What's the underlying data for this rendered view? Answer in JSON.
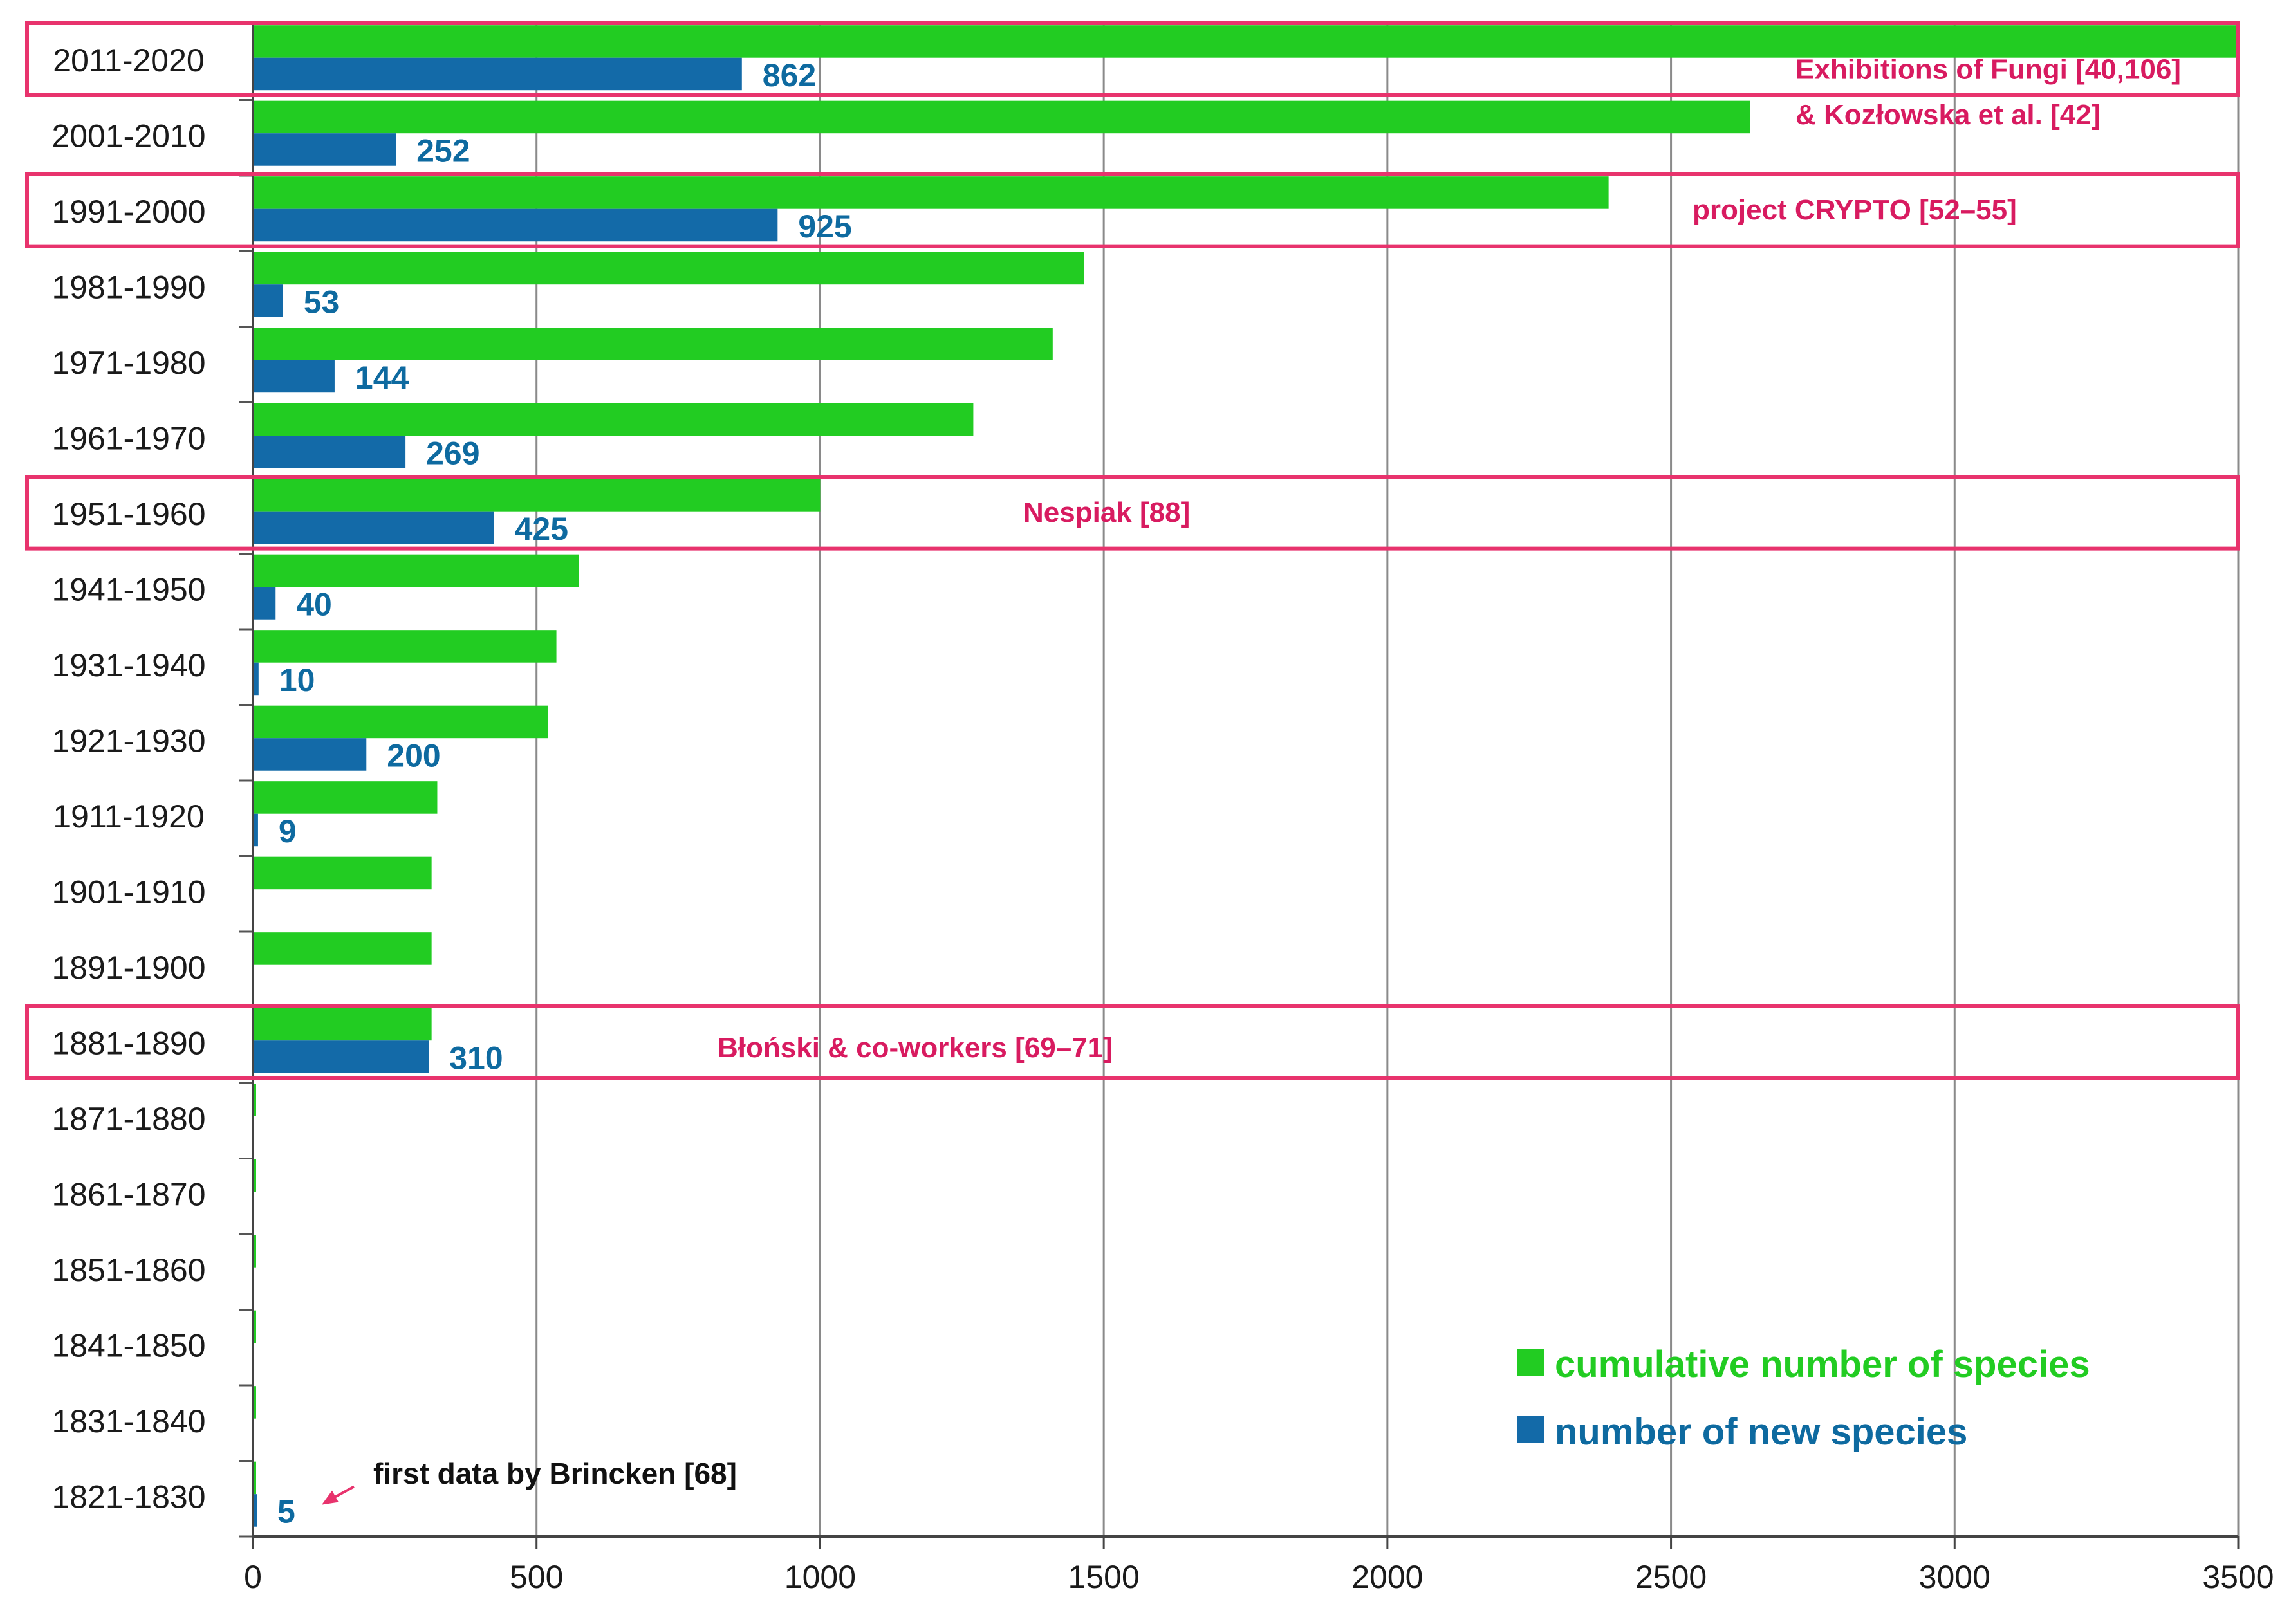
{
  "chart_data": {
    "type": "bar",
    "orientation": "horizontal",
    "title": "",
    "xlabel": "",
    "ylabel": "",
    "xlim": [
      0,
      3500
    ],
    "xticks": [
      "0",
      "500",
      "1000",
      "1500",
      "2000",
      "2500",
      "3000",
      "3500"
    ],
    "grid": true,
    "categories": [
      "2011-2020",
      "2001-2010",
      "1991-2000",
      "1981-1990",
      "1971-1980",
      "1961-1970",
      "1951-1960",
      "1941-1950",
      "1931-1940",
      "1921-1930",
      "1911-1920",
      "1901-1910",
      "1891-1900",
      "1881-1890",
      "1871-1880",
      "1861-1870",
      "1851-1860",
      "1841-1850",
      "1831-1840",
      "1821-1830"
    ],
    "series": [
      {
        "name": "cumulative number of species",
        "color": "#22cc22",
        "values": [
          3500,
          2640,
          2390,
          1465,
          1410,
          1270,
          1000,
          575,
          535,
          520,
          325,
          315,
          315,
          315,
          5,
          5,
          5,
          5,
          5,
          5
        ]
      },
      {
        "name": "number of new species",
        "color": "#136aa8",
        "values": [
          862,
          252,
          925,
          53,
          144,
          269,
          425,
          40,
          10,
          200,
          9,
          null,
          null,
          310,
          null,
          null,
          null,
          null,
          null,
          5
        ],
        "labels": [
          "862",
          "252",
          "925",
          "53",
          "144",
          "269",
          "425",
          "40",
          "10",
          "200",
          "9",
          "",
          "",
          "310",
          "",
          "",
          "",
          "",
          "",
          "5"
        ]
      }
    ],
    "legend": {
      "position": "bottom-right",
      "items": [
        "cumulative number of species",
        "number of new species"
      ]
    },
    "highlights": [
      {
        "category": "2011-2020",
        "label_lines": [
          "Exhibitions of Fungi [40,106]",
          "& Kozłowska et al. [42]"
        ]
      },
      {
        "category": "1991-2000",
        "label_lines": [
          "project CRYPTO  [52–55]"
        ]
      },
      {
        "category": "1951-1960",
        "label_lines": [
          "Nespiak [88]"
        ]
      },
      {
        "category": "1881-1890",
        "label_lines": [
          "Błoński & co-workers [69–71]"
        ]
      }
    ],
    "annotation": {
      "text": "first data by Brincken [68]",
      "category": "1821-1830"
    },
    "colors": {
      "highlight_box": "#e8336d",
      "label_text": "#0e6aa0",
      "grid": "#8a8a8a"
    }
  }
}
